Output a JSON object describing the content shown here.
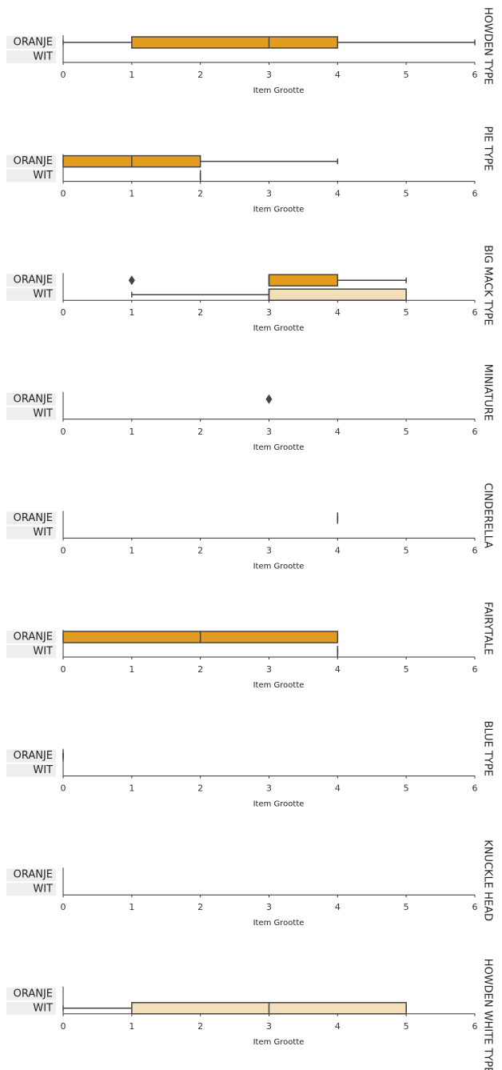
{
  "chart_data": [
    {
      "type": "box",
      "title": "HOWDEN TYPE",
      "categories": [
        "ORANJE",
        "WIT"
      ],
      "colors": [
        "#e39c1f",
        "#f3dfb9"
      ],
      "x_label": "Item Grootte",
      "xlim": [
        0,
        6
      ],
      "xticks": [
        0,
        1,
        2,
        3,
        4,
        5,
        6
      ],
      "boxes": [
        {
          "min": 0,
          "q1": 1,
          "median": 3,
          "q3": 4,
          "max": 6,
          "outliers": []
        },
        null
      ]
    },
    {
      "type": "box",
      "title": "PIE TYPE",
      "categories": [
        "ORANJE",
        "WIT"
      ],
      "colors": [
        "#e39c1f",
        "#f3dfb9"
      ],
      "x_label": "Item Grootte",
      "xlim": [
        0,
        6
      ],
      "xticks": [
        0,
        1,
        2,
        3,
        4,
        5,
        6
      ],
      "boxes": [
        {
          "min": 0,
          "q1": 0,
          "median": 1,
          "q3": 2,
          "max": 4,
          "outliers": []
        },
        {
          "min": 2,
          "q1": 2,
          "median": 2,
          "q3": 2,
          "max": 2,
          "outliers": []
        }
      ]
    },
    {
      "type": "box",
      "title": "BIG MACK TYPE",
      "categories": [
        "ORANJE",
        "WIT"
      ],
      "colors": [
        "#e39c1f",
        "#f3dfb9"
      ],
      "x_label": "Item Grootte",
      "xlim": [
        0,
        6
      ],
      "xticks": [
        0,
        1,
        2,
        3,
        4,
        5,
        6
      ],
      "boxes": [
        {
          "min": 3,
          "q1": 3,
          "median": 3,
          "q3": 4,
          "max": 5,
          "outliers": [
            1
          ]
        },
        {
          "min": 1,
          "q1": 3,
          "median": 3,
          "q3": 5,
          "max": 5,
          "outliers": []
        }
      ]
    },
    {
      "type": "box",
      "title": "MINIATURE",
      "categories": [
        "ORANJE",
        "WIT"
      ],
      "colors": [
        "#e39c1f",
        "#f3dfb9"
      ],
      "x_label": "Item Grootte",
      "xlim": [
        0,
        6
      ],
      "xticks": [
        0,
        1,
        2,
        3,
        4,
        5,
        6
      ],
      "boxes": [
        {
          "outliers": [
            3
          ]
        },
        null
      ]
    },
    {
      "type": "box",
      "title": "CINDERELLA",
      "categories": [
        "ORANJE",
        "WIT"
      ],
      "colors": [
        "#e39c1f",
        "#f3dfb9"
      ],
      "x_label": "Item Grootte",
      "xlim": [
        0,
        6
      ],
      "xticks": [
        0,
        1,
        2,
        3,
        4,
        5,
        6
      ],
      "boxes": [
        {
          "min": 4,
          "q1": 4,
          "median": 4,
          "q3": 4,
          "max": 4,
          "outliers": []
        },
        null
      ]
    },
    {
      "type": "box",
      "title": "FAIRYTALE",
      "categories": [
        "ORANJE",
        "WIT"
      ],
      "colors": [
        "#e39c1f",
        "#f3dfb9"
      ],
      "x_label": "Item Grootte",
      "xlim": [
        0,
        6
      ],
      "xticks": [
        0,
        1,
        2,
        3,
        4,
        5,
        6
      ],
      "boxes": [
        {
          "min": 0,
          "q1": 0,
          "median": 2,
          "q3": 4,
          "max": 4,
          "outliers": []
        },
        {
          "min": 4,
          "q1": 4,
          "median": 4,
          "q3": 4,
          "max": 4,
          "outliers": []
        }
      ]
    },
    {
      "type": "box",
      "title": "BLUE TYPE",
      "categories": [
        "ORANJE",
        "WIT"
      ],
      "colors": [
        "#e39c1f",
        "#f3dfb9"
      ],
      "x_label": "Item Grootte",
      "xlim": [
        0,
        6
      ],
      "xticks": [
        0,
        1,
        2,
        3,
        4,
        5,
        6
      ],
      "boxes": [
        {
          "min": 0,
          "q1": 0,
          "median": 0,
          "q3": 0,
          "max": 0,
          "outliers": []
        },
        null
      ]
    },
    {
      "type": "box",
      "title": "KNUCKLE HEAD",
      "categories": [
        "ORANJE",
        "WIT"
      ],
      "colors": [
        "#e39c1f",
        "#f3dfb9"
      ],
      "x_label": "Item Grootte",
      "xlim": [
        0,
        6
      ],
      "xticks": [
        0,
        1,
        2,
        3,
        4,
        5,
        6
      ],
      "boxes": [
        null,
        null
      ]
    },
    {
      "type": "box",
      "title": "HOWDEN WHITE TYPE",
      "categories": [
        "ORANJE",
        "WIT"
      ],
      "colors": [
        "#e39c1f",
        "#f3dfb9"
      ],
      "x_label": "Item Grootte",
      "xlim": [
        0,
        6
      ],
      "xticks": [
        0,
        1,
        2,
        3,
        4,
        5,
        6
      ],
      "boxes": [
        null,
        {
          "min": 0,
          "q1": 1,
          "median": 3,
          "q3": 5,
          "max": 5,
          "outliers": []
        }
      ]
    }
  ]
}
